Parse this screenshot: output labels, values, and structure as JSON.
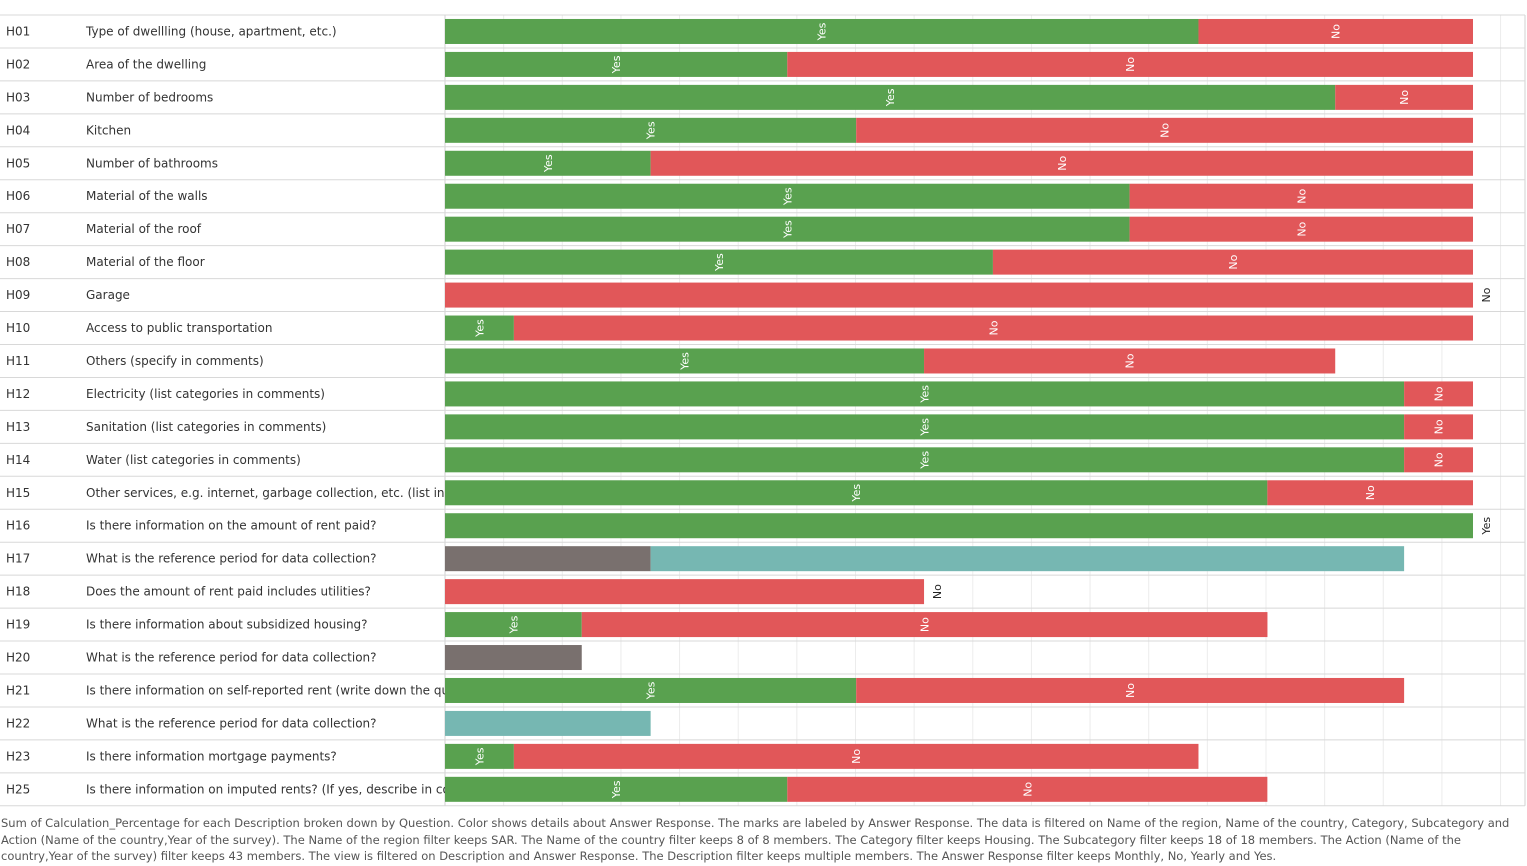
{
  "colors": {
    "Yes": "#59a14f",
    "No": "#e15759",
    "Monthly": "#79706e",
    "Yearly": "#76b7b2"
  },
  "chart_data": {
    "type": "bar",
    "orientation": "horizontal",
    "stacked": true,
    "x_unit": "percentage",
    "xlim": [
      0,
      1.32
    ],
    "grid": true,
    "xlabel": "",
    "ylabel": "",
    "series_order": [
      "Yes",
      "No",
      "Monthly",
      "Yearly"
    ],
    "rows": [
      {
        "code": "H01",
        "description": "Type of dwellling (house, apartment, etc.)",
        "segments": [
          {
            "response": "Yes",
            "value": 0.875
          },
          {
            "response": "No",
            "value": 0.3188
          }
        ]
      },
      {
        "code": "H02",
        "description": "Area of the dwelling",
        "segments": [
          {
            "response": "Yes",
            "value": 0.3975
          },
          {
            "response": "No",
            "value": 0.7963
          }
        ]
      },
      {
        "code": "H03",
        "description": "Number of bedrooms",
        "segments": [
          {
            "response": "Yes",
            "value": 1.0338
          },
          {
            "response": "No",
            "value": 0.16
          }
        ]
      },
      {
        "code": "H04",
        "description": "Kitchen",
        "segments": [
          {
            "response": "Yes",
            "value": 0.4775
          },
          {
            "response": "No",
            "value": 0.7163
          }
        ]
      },
      {
        "code": "H05",
        "description": "Number of bathrooms",
        "segments": [
          {
            "response": "Yes",
            "value": 0.2388
          },
          {
            "response": "No",
            "value": 0.955
          }
        ]
      },
      {
        "code": "H06",
        "description": "Material of the walls",
        "segments": [
          {
            "response": "Yes",
            "value": 0.795
          },
          {
            "response": "No",
            "value": 0.3988
          }
        ]
      },
      {
        "code": "H07",
        "description": "Material of the roof",
        "segments": [
          {
            "response": "Yes",
            "value": 0.795
          },
          {
            "response": "No",
            "value": 0.3988
          }
        ]
      },
      {
        "code": "H08",
        "description": "Material of the floor",
        "segments": [
          {
            "response": "Yes",
            "value": 0.6363
          },
          {
            "response": "No",
            "value": 0.5575
          }
        ]
      },
      {
        "code": "H09",
        "description": "Garage",
        "segments": [
          {
            "response": "No",
            "value": 1.1938
          }
        ]
      },
      {
        "code": "H10",
        "description": "Access to public transportation",
        "segments": [
          {
            "response": "Yes",
            "value": 0.08
          },
          {
            "response": "No",
            "value": 1.1138
          }
        ]
      },
      {
        "code": "H11",
        "description": "Others (specify in comments)",
        "segments": [
          {
            "response": "Yes",
            "value": 0.5563
          },
          {
            "response": "No",
            "value": 0.4775
          }
        ]
      },
      {
        "code": "H12",
        "description": "Electricity (list categories in comments)",
        "segments": [
          {
            "response": "Yes",
            "value": 1.1138
          },
          {
            "response": "No",
            "value": 0.08
          }
        ]
      },
      {
        "code": "H13",
        "description": "Sanitation (list categories in comments)",
        "segments": [
          {
            "response": "Yes",
            "value": 1.1138
          },
          {
            "response": "No",
            "value": 0.08
          }
        ]
      },
      {
        "code": "H14",
        "description": "Water (list categories in comments)",
        "segments": [
          {
            "response": "Yes",
            "value": 1.1138
          },
          {
            "response": "No",
            "value": 0.08
          }
        ]
      },
      {
        "code": "H15",
        "description": "Other services, e.g. internet, garbage collection, etc. (list in co..",
        "segments": [
          {
            "response": "Yes",
            "value": 0.955
          },
          {
            "response": "No",
            "value": 0.2388
          }
        ]
      },
      {
        "code": "H16",
        "description": "Is there information on the amount of rent paid?",
        "segments": [
          {
            "response": "Yes",
            "value": 1.1938
          }
        ]
      },
      {
        "code": "H17",
        "description": "What is the reference period for data collection?",
        "segments": [
          {
            "response": "Monthly",
            "value": 0.2388
          },
          {
            "response": "Yearly",
            "value": 0.875
          }
        ]
      },
      {
        "code": "H18",
        "description": "Does the amount of rent paid includes utilities?",
        "segments": [
          {
            "response": "No",
            "value": 0.5563
          }
        ]
      },
      {
        "code": "H19",
        "description": "Is there information about subsidized housing?",
        "segments": [
          {
            "response": "Yes",
            "value": 0.1588
          },
          {
            "response": "No",
            "value": 0.7963
          }
        ]
      },
      {
        "code": "H20",
        "description": "What is the reference period for data collection?",
        "segments": [
          {
            "response": "Monthly",
            "value": 0.1588
          }
        ]
      },
      {
        "code": "H21",
        "description": "Is there information on self-reported rent (write down the que..",
        "segments": [
          {
            "response": "Yes",
            "value": 0.4775
          },
          {
            "response": "No",
            "value": 0.6363
          }
        ]
      },
      {
        "code": "H22",
        "description": "What is the reference period for data collection?",
        "segments": [
          {
            "response": "Yearly",
            "value": 0.2388
          }
        ]
      },
      {
        "code": "H23",
        "description": "Is there information mortgage payments?",
        "segments": [
          {
            "response": "Yes",
            "value": 0.08
          },
          {
            "response": "No",
            "value": 0.795
          }
        ]
      },
      {
        "code": "H25",
        "description": "Is there information on imputed rents? (If yes, describe in co..",
        "segments": [
          {
            "response": "Yes",
            "value": 0.3975
          },
          {
            "response": "No",
            "value": 0.5575
          }
        ]
      }
    ]
  },
  "caption": "Sum of Calculation_Percentage for each Description broken down by Question.  Color shows details about Answer Response.  The marks are labeled by Answer Response. The data is filtered on Name of the region, Name of the country, Category, Subcategory and Action (Name of the country,Year of the survey). The Name of the region filter keeps SAR. The Name of the country filter keeps 8 of 8 members. The Category filter keeps Housing. The Subcategory filter keeps 18 of 18 members. The Action (Name of the country,Year of the survey) filter keeps 43 members. The view is filtered on Description and Answer Response. The Description filter keeps multiple members. The Answer Response filter keeps Monthly, No, Yearly and Yes."
}
